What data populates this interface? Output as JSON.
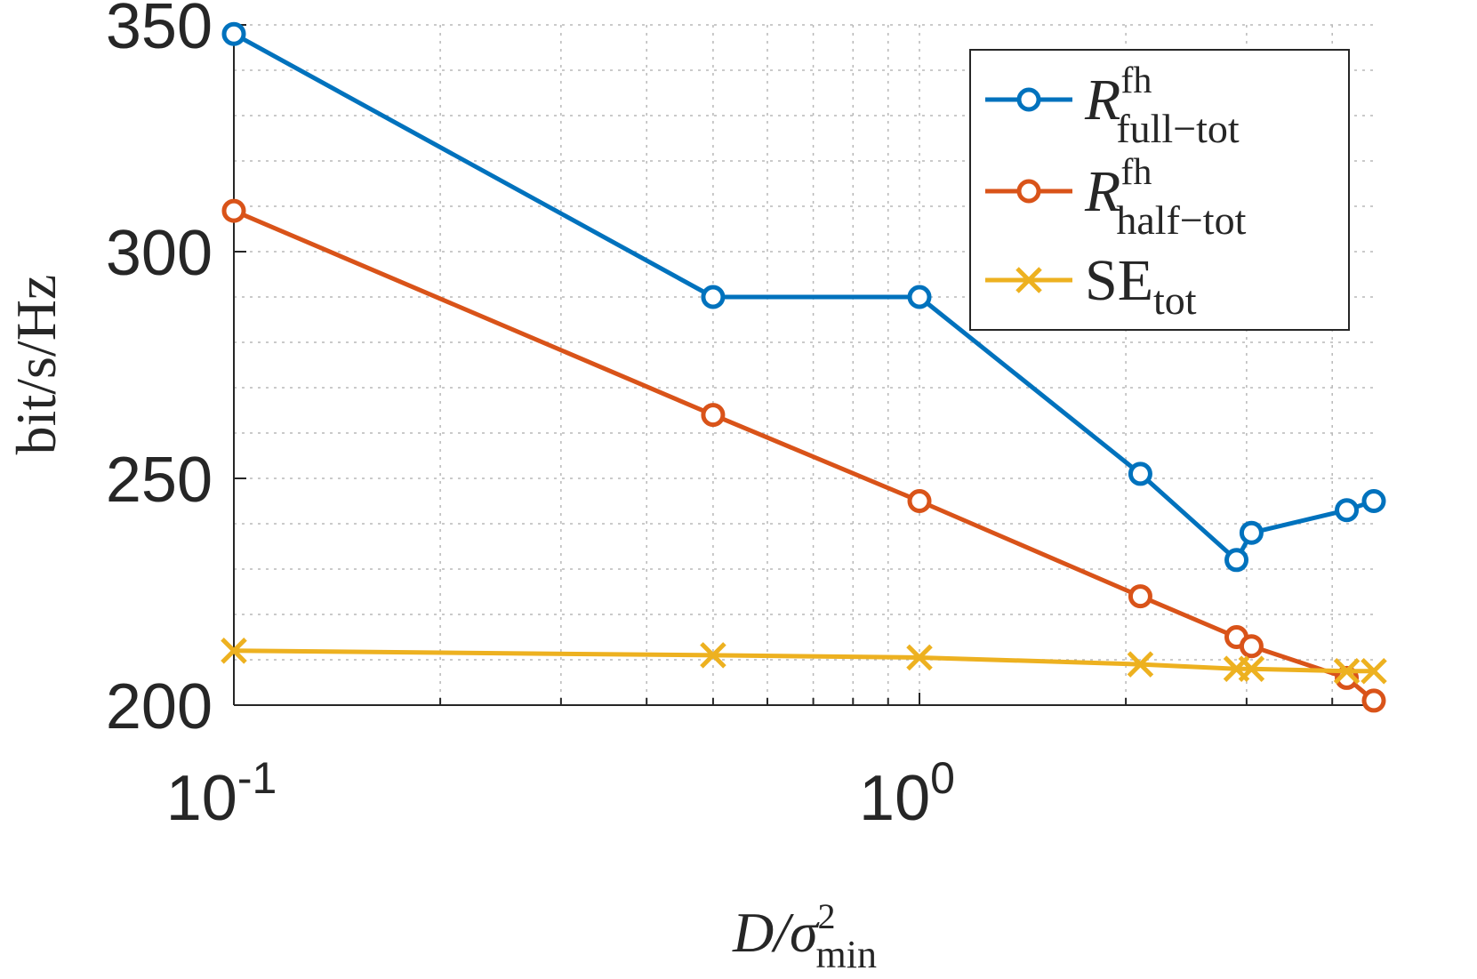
{
  "chart_data": {
    "type": "line",
    "x_scale": "log",
    "xlim": [
      0.1,
      4.6
    ],
    "ylim": [
      200,
      350
    ],
    "grid": true,
    "xticks": [
      {
        "value": 0.1,
        "base": "10",
        "exp": "-1"
      },
      {
        "value": 1,
        "base": "10",
        "exp": "0"
      }
    ],
    "yticks": [
      {
        "value": 200,
        "label": "200"
      },
      {
        "value": 250,
        "label": "250"
      },
      {
        "value": 300,
        "label": "300"
      },
      {
        "value": 350,
        "label": "350"
      }
    ],
    "xlabel": {
      "main": "D/σ",
      "sup": "2",
      "sub": "min"
    },
    "ylabel": "bit/s/Hz",
    "legend_position": "top-right",
    "x": [
      0.1,
      0.5,
      1.0,
      2.1,
      2.9,
      3.05,
      4.2,
      4.6
    ],
    "series": [
      {
        "name": "R fh full−tot",
        "legend": {
          "main": "R",
          "sup": "fh",
          "sub": "full−tot"
        },
        "color": "#0072BD",
        "marker": "circle",
        "values": [
          348,
          290,
          290,
          251,
          232,
          238,
          243,
          245
        ]
      },
      {
        "name": "R fh half−tot",
        "legend": {
          "main": "R",
          "sup": "fh",
          "sub": "half−tot"
        },
        "color": "#D95319",
        "marker": "circle",
        "values": [
          309,
          264,
          245,
          224,
          215,
          213,
          206,
          201
        ]
      },
      {
        "name": "SE tot",
        "legend": {
          "main": "SE",
          "sup": "",
          "sub": "tot"
        },
        "color": "#EDB120",
        "marker": "x",
        "values": [
          212,
          211,
          210.5,
          209,
          208,
          208,
          207.5,
          207.5
        ]
      }
    ]
  }
}
